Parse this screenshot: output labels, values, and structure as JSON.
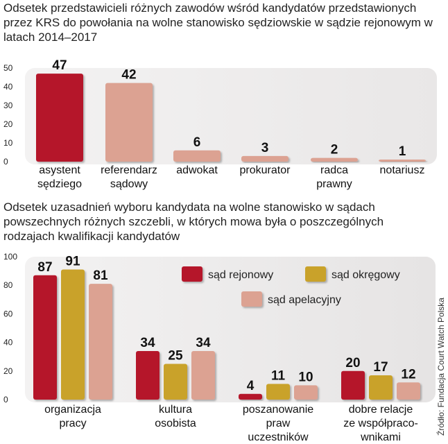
{
  "chart_data": [
    {
      "type": "bar",
      "title": "Odsetek przedstawicieli różnych zawodów wśród kandydatów przedstawionych przez KRS do powołania na wolne stanowisko sędziowskie w sądzie rejonowym w latach 2014–2017",
      "categories": [
        [
          "asystent",
          "sędziego"
        ],
        [
          "referendarz",
          "sądowy"
        ],
        [
          "adwokat"
        ],
        [
          "prokurator"
        ],
        [
          "radca",
          "prawny"
        ],
        [
          "notariusz"
        ]
      ],
      "values": [
        47,
        42,
        6,
        3,
        2,
        1
      ],
      "data_labels": [
        "47",
        "42",
        "6",
        "3",
        "2",
        "1"
      ],
      "yticks": [
        "50",
        "40",
        "30",
        "20",
        "10",
        "0"
      ],
      "ylim": [
        0,
        50
      ],
      "colors": [
        "#b5172c",
        "#dca292",
        "#dca292",
        "#dca292",
        "#dca292",
        "#dca292"
      ]
    },
    {
      "type": "bar",
      "title": "Odsetek uzasadnień wyboru kandydata na wolne stanowisko w sądach powszechnych różnych szczebli, w których mowa była o poszczególnych rodzajach kwalifikacji kandydatów",
      "categories": [
        [
          "organizacja",
          "pracy"
        ],
        [
          "kultura",
          "osobista"
        ],
        [
          "poszanowanie",
          "praw",
          "uczestników"
        ],
        [
          "dobre relacje",
          "ze współpraco-",
          "wnikami"
        ]
      ],
      "series": [
        {
          "name": "sąd rejonowy",
          "values": [
            87,
            34,
            4,
            20
          ],
          "labels": [
            "87",
            "34",
            "4",
            "20"
          ],
          "color": "#b5172c"
        },
        {
          "name": "sąd okręgowy",
          "values": [
            91,
            25,
            11,
            17
          ],
          "labels": [
            "91",
            "25",
            "11",
            "17"
          ],
          "color": "#c9a22a"
        },
        {
          "name": "sąd apelacyjny",
          "values": [
            81,
            34,
            10,
            12
          ],
          "labels": [
            "81",
            "34",
            "10",
            "12"
          ],
          "color": "#dca292"
        }
      ],
      "yticks": [
        "100",
        "80",
        "60",
        "40",
        "20",
        "0"
      ],
      "ylim": [
        0,
        100
      ],
      "legend_position": "top-right"
    }
  ],
  "source": "Źródło: Fundacja Court Watch Polska"
}
